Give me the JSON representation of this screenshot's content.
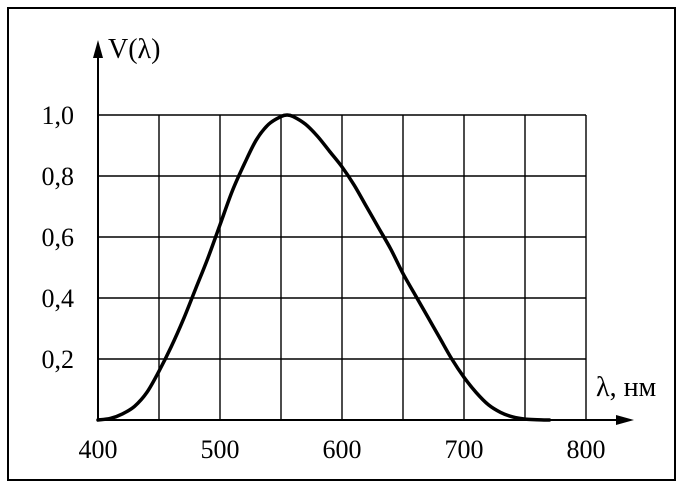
{
  "chart_data": {
    "type": "line",
    "ylabel": "V(λ)",
    "xlabel": "λ, нм",
    "x_ticks": [
      400,
      500,
      600,
      700,
      800
    ],
    "x_tick_labels": [
      "400",
      "500",
      "600",
      "700",
      "800"
    ],
    "y_ticks": [
      0.2,
      0.4,
      0.6,
      0.8,
      1.0
    ],
    "y_tick_labels": [
      "0,2",
      "0,4",
      "0,6",
      "0,8",
      "1,0"
    ],
    "xlim": [
      400,
      800
    ],
    "ylim": [
      0,
      1.0
    ],
    "grid": true,
    "grid_x_step": 50,
    "grid_y_step": 0.2,
    "series": [
      {
        "x": [
          400,
          410,
          420,
          430,
          440,
          450,
          460,
          470,
          480,
          490,
          500,
          510,
          520,
          530,
          540,
          550,
          555,
          560,
          570,
          580,
          590,
          600,
          610,
          620,
          630,
          640,
          650,
          660,
          670,
          680,
          690,
          700,
          710,
          720,
          730,
          740,
          750,
          760,
          770
        ],
        "y": [
          0.0,
          0.005,
          0.02,
          0.045,
          0.09,
          0.16,
          0.24,
          0.33,
          0.43,
          0.53,
          0.64,
          0.75,
          0.84,
          0.92,
          0.97,
          0.995,
          1.0,
          0.995,
          0.97,
          0.93,
          0.88,
          0.83,
          0.77,
          0.7,
          0.63,
          0.56,
          0.48,
          0.41,
          0.34,
          0.27,
          0.2,
          0.14,
          0.09,
          0.05,
          0.025,
          0.01,
          0.003,
          0.001,
          0.0
        ],
        "color": "#000000"
      }
    ]
  }
}
